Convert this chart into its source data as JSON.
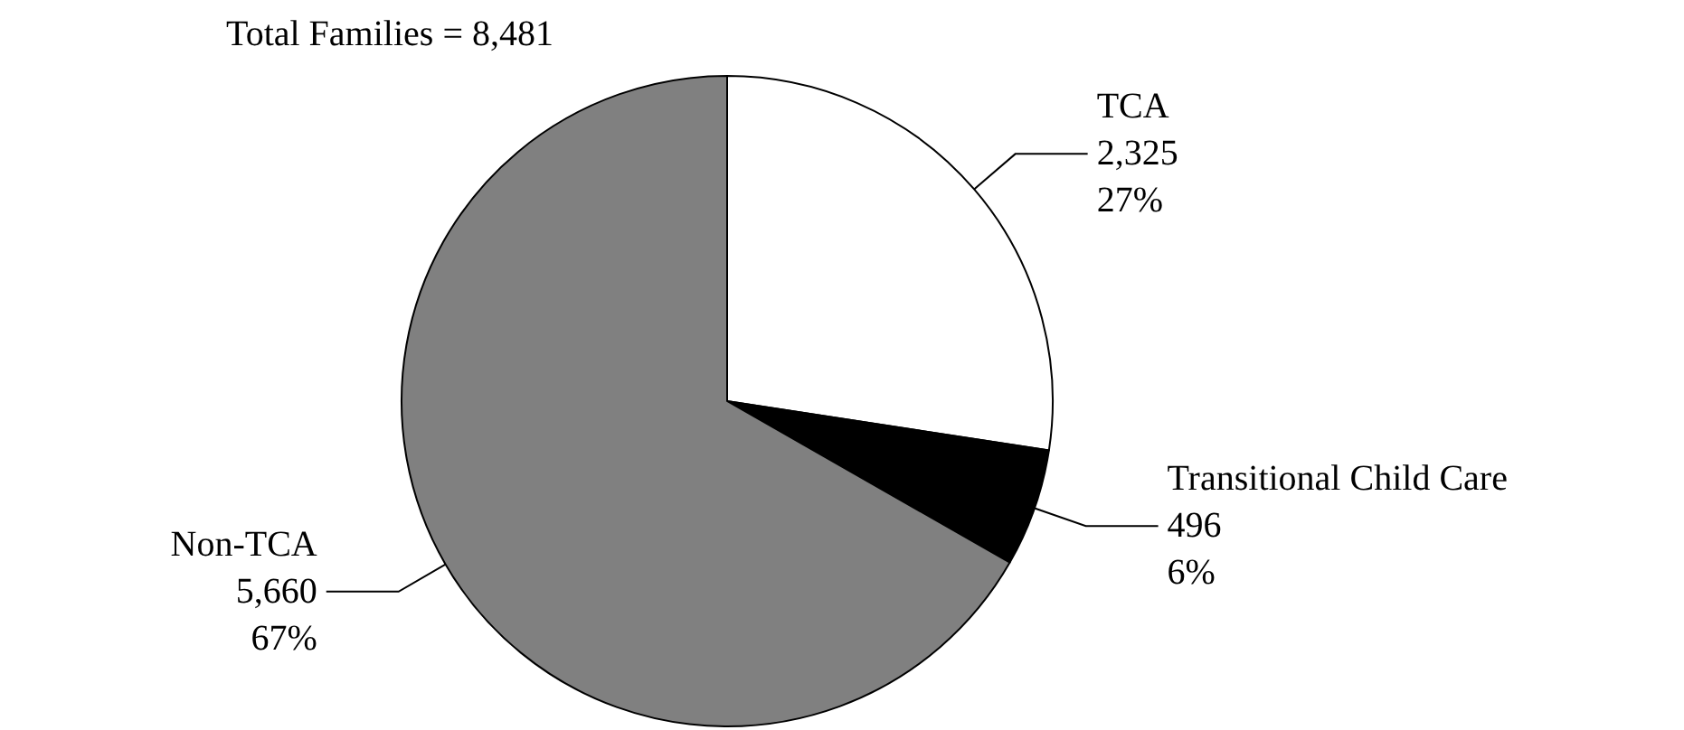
{
  "chart_data": {
    "type": "pie",
    "title": "Total Families = 8,481",
    "categories": [
      "TCA",
      "Transitional Child Care",
      "Non-TCA"
    ],
    "values": [
      2325,
      496,
      5660
    ],
    "colors": [
      "#ffffff",
      "#000000",
      "#808080"
    ],
    "value_labels": [
      "2,325\n27%",
      "496\n6%",
      "5,660\n67%"
    ],
    "legend": false
  }
}
